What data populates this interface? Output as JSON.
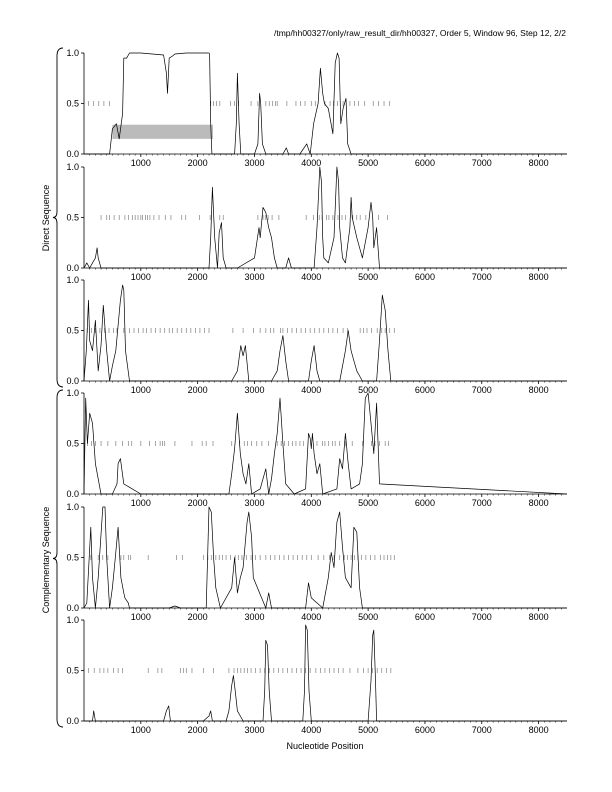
{
  "title": "/tmp/hh00327/only/raw_result_dir/hh00327, Order 5, Window 96, Step 12, 2/2",
  "xlabel": "Nucleotide Position",
  "group_labels": {
    "direct": "Direct Sequence",
    "complementary": "Complementary Sequence"
  },
  "colors": {
    "trace": "#000000",
    "highlight": "#bbbbbb",
    "ticks": "#808080"
  },
  "chart_data": [
    {
      "type": "line",
      "name": "direct-frame-1",
      "xlim": [
        0,
        8500
      ],
      "ylim": [
        0,
        1.0
      ],
      "xticks": [
        1000,
        2000,
        3000,
        4000,
        5000,
        6000,
        7000,
        8000
      ],
      "yticks": [
        0.0,
        0.5,
        1.0
      ],
      "ytick_labels": [
        "0.0",
        "0.5",
        "1.0"
      ],
      "highlight": [
        [
          500,
          2270
        ]
      ],
      "tick_marks_y": 0.5,
      "tick_marks_x": [
        80,
        170,
        260,
        350,
        450,
        2230,
        2280,
        2330,
        2390,
        2580,
        2650,
        2720,
        2940,
        3060,
        3200,
        3260,
        3320,
        3370,
        3400,
        3570,
        3730,
        3810,
        3890,
        4000,
        4070,
        4240,
        4330,
        4390,
        4460,
        4560,
        4680,
        4760,
        4830,
        4940,
        5090,
        5180,
        5280,
        5380
      ],
      "x": [
        0,
        450,
        500,
        570,
        620,
        680,
        700,
        750,
        800,
        1000,
        1400,
        1450,
        1470,
        1500,
        1560,
        1600,
        1800,
        2000,
        2200,
        2210,
        2230,
        2250,
        2500,
        2650,
        2680,
        2700,
        2730,
        2760,
        3000,
        3060,
        3090,
        3110,
        3140,
        3200,
        3500,
        3560,
        3600,
        3700,
        3800,
        3920,
        3980,
        4040,
        4120,
        4160,
        4200,
        4230,
        4300,
        4380,
        4420,
        4460,
        4490,
        4520,
        4560,
        4610,
        4640,
        4700,
        5000,
        5100,
        8500
      ],
      "y": [
        0.0,
        0.0,
        0.25,
        0.3,
        0.15,
        0.4,
        0.95,
        0.95,
        1.0,
        1.0,
        0.98,
        0.8,
        0.6,
        0.95,
        0.97,
        0.99,
        1.0,
        1.0,
        1.0,
        0.99,
        0.3,
        0.0,
        0.0,
        0.0,
        0.3,
        0.8,
        0.3,
        0.0,
        0.0,
        0.1,
        0.6,
        0.5,
        0.1,
        0.0,
        0.0,
        0.06,
        0.0,
        0.0,
        0.0,
        0.1,
        0.0,
        0.3,
        0.5,
        0.85,
        0.6,
        0.5,
        0.45,
        0.2,
        0.9,
        1.0,
        0.95,
        0.3,
        0.45,
        0.55,
        0.1,
        0.0,
        0.0,
        0.0,
        0.0
      ]
    },
    {
      "type": "line",
      "name": "direct-frame-2",
      "xlim": [
        0,
        8500
      ],
      "ylim": [
        0,
        1.0
      ],
      "xticks": [
        1000,
        2000,
        3000,
        4000,
        5000,
        6000,
        7000,
        8000
      ],
      "yticks": [
        0.0,
        0.5,
        1.0
      ],
      "ytick_labels": [
        "0.0",
        "0.5",
        "1.0"
      ],
      "highlight": [],
      "tick_marks_y": 0.5,
      "tick_marks_x": [
        300,
        400,
        450,
        530,
        620,
        720,
        780,
        850,
        900,
        950,
        1000,
        1030,
        1080,
        1120,
        1160,
        1230,
        1320,
        1430,
        1530,
        1720,
        1790,
        2030,
        2220,
        2390,
        2450,
        3060,
        3150,
        3190,
        3240,
        3310,
        3430,
        3910,
        4040,
        4140,
        4190,
        4270,
        4310,
        4380,
        4470,
        4540,
        4600,
        4730,
        4800,
        4860,
        4960,
        5180,
        5340
      ],
      "x": [
        0,
        50,
        100,
        150,
        200,
        230,
        250,
        300,
        500,
        1500,
        2200,
        2230,
        2260,
        2300,
        2350,
        2380,
        2420,
        2450,
        2500,
        2700,
        3000,
        3080,
        3100,
        3150,
        3200,
        3250,
        3300,
        3350,
        3400,
        3550,
        3600,
        3650,
        4050,
        4100,
        4150,
        4180,
        4200,
        4220,
        4300,
        4400,
        4450,
        4480,
        4500,
        4550,
        4600,
        4680,
        4700,
        4720,
        4800,
        4900,
        5000,
        5050,
        5080,
        5100,
        5150,
        5200,
        8500
      ],
      "y": [
        0.0,
        0.05,
        0.0,
        0.05,
        0.1,
        0.2,
        0.1,
        0.0,
        0.0,
        0.0,
        0.0,
        0.3,
        0.8,
        0.3,
        0.0,
        0.35,
        0.45,
        0.1,
        0.0,
        0.0,
        0.1,
        0.4,
        0.3,
        0.6,
        0.55,
        0.4,
        0.3,
        0.1,
        0.0,
        0.0,
        0.1,
        0.0,
        0.0,
        0.4,
        1.0,
        0.85,
        0.3,
        0.1,
        0.05,
        0.3,
        1.0,
        0.85,
        0.4,
        0.1,
        0.05,
        0.4,
        0.7,
        0.5,
        0.3,
        0.1,
        0.4,
        0.65,
        0.5,
        0.2,
        0.4,
        0.0,
        0.0
      ]
    },
    {
      "type": "line",
      "name": "direct-frame-3",
      "xlim": [
        0,
        8500
      ],
      "ylim": [
        0,
        1.0
      ],
      "xticks": [
        1000,
        2000,
        3000,
        4000,
        5000,
        6000,
        7000,
        8000
      ],
      "yticks": [
        0.0,
        0.5,
        1.0
      ],
      "ytick_labels": [
        "0.0",
        "0.5",
        "1.0"
      ],
      "highlight": [],
      "tick_marks_y": 0.5,
      "tick_marks_x": [
        60,
        130,
        200,
        280,
        360,
        440,
        520,
        580,
        700,
        800,
        880,
        960,
        1040,
        1100,
        1180,
        1260,
        1340,
        1420,
        1500,
        1560,
        1640,
        1720,
        1800,
        1880,
        1960,
        2040,
        2120,
        2200,
        2620,
        2800,
        2980,
        3100,
        3200,
        3280,
        3340,
        3460,
        3500,
        3580,
        3660,
        3740,
        3820,
        3900,
        3980,
        4060,
        4140,
        4220,
        4300,
        4380,
        4460,
        4560,
        4640,
        4860,
        4920,
        4980,
        5060,
        5160,
        5240,
        5300,
        5380,
        5460
      ],
      "x": [
        0,
        40,
        80,
        100,
        150,
        200,
        220,
        250,
        300,
        340,
        400,
        450,
        500,
        560,
        600,
        640,
        680,
        700,
        730,
        800,
        1000,
        2600,
        2700,
        2760,
        2800,
        2840,
        2900,
        3300,
        3400,
        3450,
        3500,
        3550,
        3600,
        3950,
        4000,
        4050,
        4100,
        4150,
        4500,
        4600,
        4650,
        4700,
        4750,
        4800,
        4900,
        5150,
        5200,
        5250,
        5300,
        5350,
        5400,
        8500
      ],
      "y": [
        0.0,
        0.3,
        0.8,
        0.4,
        0.3,
        0.6,
        0.4,
        0.1,
        0.35,
        0.75,
        0.3,
        0.0,
        0.15,
        0.3,
        0.55,
        0.8,
        0.95,
        0.9,
        0.3,
        0.0,
        0.0,
        0.0,
        0.1,
        0.35,
        0.25,
        0.35,
        0.0,
        0.0,
        0.1,
        0.3,
        0.45,
        0.2,
        0.0,
        0.0,
        0.2,
        0.35,
        0.1,
        0.0,
        0.0,
        0.3,
        0.5,
        0.3,
        0.2,
        0.1,
        0.0,
        0.0,
        0.4,
        0.85,
        0.7,
        0.3,
        0.0,
        0.0
      ]
    },
    {
      "type": "line",
      "name": "complementary-frame-1",
      "xlim": [
        0,
        8500
      ],
      "ylim": [
        0,
        1.0
      ],
      "xticks": [
        1000,
        2000,
        3000,
        4000,
        5000,
        6000,
        7000,
        8000
      ],
      "yticks": [
        0.0,
        0.5,
        1.0
      ],
      "ytick_labels": [
        "0.0",
        "0.5",
        "1.0"
      ],
      "highlight": [],
      "tick_marks_y": 0.5,
      "tick_marks_x": [
        60,
        130,
        200,
        300,
        420,
        560,
        680,
        780,
        840,
        1000,
        1150,
        1260,
        1340,
        1380,
        1420,
        1600,
        1900,
        2080,
        2150,
        2270,
        2600,
        2740,
        2820,
        2880,
        2950,
        3040,
        3130,
        3250,
        3400,
        3470,
        3530,
        3600,
        3670,
        3730,
        3800,
        3860,
        4100,
        4200,
        4240,
        4300,
        4370,
        4420,
        4500,
        4600,
        4720,
        4900,
        5060,
        5120,
        5200,
        5300,
        5360
      ],
      "x": [
        0,
        30,
        60,
        100,
        150,
        200,
        300,
        500,
        580,
        600,
        640,
        700,
        1000,
        2550,
        2600,
        2650,
        2700,
        2750,
        2800,
        2850,
        2900,
        2950,
        3100,
        3200,
        3250,
        3300,
        3350,
        3400,
        3450,
        3500,
        3550,
        3700,
        3900,
        3950,
        3980,
        4000,
        4020,
        4050,
        4100,
        4150,
        4200,
        4450,
        4500,
        4550,
        4600,
        4650,
        4700,
        4850,
        4900,
        4950,
        5000,
        5050,
        5100,
        5150,
        5200,
        8500
      ],
      "y": [
        0.0,
        0.95,
        0.5,
        0.8,
        0.7,
        0.3,
        0.0,
        0.0,
        0.1,
        0.3,
        0.35,
        0.1,
        0.0,
        0.0,
        0.2,
        0.45,
        0.8,
        0.4,
        0.2,
        0.1,
        0.3,
        0.0,
        0.05,
        0.25,
        0.0,
        0.15,
        0.4,
        0.6,
        0.95,
        0.5,
        0.1,
        0.0,
        0.05,
        0.6,
        0.55,
        0.45,
        0.6,
        0.4,
        0.2,
        0.3,
        0.0,
        0.05,
        0.35,
        0.25,
        0.6,
        0.3,
        0.05,
        0.1,
        0.3,
        0.95,
        1.0,
        0.7,
        0.4,
        0.9,
        0.1,
        0.0
      ]
    },
    {
      "type": "line",
      "name": "complementary-frame-2",
      "xlim": [
        0,
        8500
      ],
      "ylim": [
        0,
        1.0
      ],
      "xticks": [
        1000,
        2000,
        3000,
        4000,
        5000,
        6000,
        7000,
        8000
      ],
      "yticks": [
        0.0,
        0.5,
        1.0
      ],
      "ytick_labels": [
        "0.0",
        "0.5",
        "1.0"
      ],
      "highlight": [],
      "tick_marks_y": 0.5,
      "tick_marks_x": [
        120,
        250,
        330,
        420,
        650,
        700,
        780,
        820,
        1130,
        1630,
        1730,
        2100,
        2180,
        2240,
        2320,
        2380,
        2440,
        2500,
        2580,
        2660,
        2720,
        2780,
        2860,
        2940,
        3020,
        3100,
        3200,
        3280,
        3360,
        3440,
        3520,
        3600,
        3680,
        3760,
        3840,
        3920,
        4000,
        4120,
        4220,
        4320,
        4400,
        4500,
        4580,
        4640,
        4700,
        4760,
        4820,
        4880,
        4960,
        5040,
        5120,
        5220,
        5280,
        5340,
        5400,
        5460
      ],
      "x": [
        0,
        50,
        120,
        150,
        200,
        250,
        330,
        370,
        400,
        450,
        500,
        560,
        600,
        650,
        700,
        720,
        780,
        800,
        1500,
        1600,
        1700,
        2150,
        2200,
        2240,
        2280,
        2320,
        2400,
        2600,
        2650,
        2700,
        2750,
        2800,
        2870,
        2900,
        2950,
        2980,
        3200,
        3250,
        3300,
        3900,
        3950,
        4000,
        4200,
        4300,
        4350,
        4400,
        4450,
        4500,
        4550,
        4600,
        4700,
        4750,
        4800,
        4850,
        4900,
        8500
      ],
      "y": [
        0.0,
        0.05,
        0.8,
        0.3,
        0.0,
        0.3,
        1.0,
        1.0,
        0.5,
        0.0,
        0.2,
        0.55,
        0.8,
        0.3,
        0.15,
        0.1,
        0.05,
        0.0,
        0.0,
        0.02,
        0.0,
        0.0,
        1.0,
        0.95,
        0.5,
        0.2,
        0.0,
        0.2,
        0.5,
        0.15,
        0.3,
        0.4,
        0.85,
        0.95,
        0.7,
        0.3,
        0.0,
        0.15,
        0.0,
        0.0,
        0.25,
        0.1,
        0.0,
        0.3,
        0.55,
        0.4,
        0.85,
        0.95,
        0.6,
        0.3,
        0.2,
        0.8,
        0.75,
        0.2,
        0.0,
        0.0
      ]
    },
    {
      "type": "line",
      "name": "complementary-frame-3",
      "xlim": [
        0,
        8500
      ],
      "ylim": [
        0,
        1.0
      ],
      "xticks": [
        1000,
        2000,
        3000,
        4000,
        5000,
        6000,
        7000,
        8000
      ],
      "yticks": [
        0.0,
        0.5,
        1.0
      ],
      "ytick_labels": [
        "0.0",
        "0.5",
        "1.0"
      ],
      "highlight": [],
      "tick_marks_y": 0.5,
      "tick_marks_x": [
        80,
        180,
        280,
        350,
        420,
        520,
        600,
        680,
        1130,
        1300,
        1370,
        1700,
        1750,
        1800,
        1900,
        2100,
        2280,
        2550,
        2640,
        2700,
        2760,
        2820,
        2880,
        2940,
        3020,
        3100,
        3180,
        3260,
        3340,
        3420,
        3500,
        3580,
        3660,
        3740,
        3820,
        3900,
        3980,
        4080,
        4160,
        4240,
        4320,
        4400,
        4480,
        4560,
        4680,
        4820,
        4920,
        5000,
        5080,
        5160,
        5240,
        5320,
        5400
      ],
      "x": [
        0,
        150,
        170,
        200,
        1400,
        1450,
        1490,
        1520,
        2100,
        2200,
        2230,
        2260,
        2500,
        2550,
        2600,
        2630,
        2660,
        2700,
        2750,
        2800,
        3150,
        3180,
        3200,
        3230,
        3260,
        3300,
        3850,
        3880,
        3900,
        3930,
        3960,
        4000,
        4200,
        4400,
        5000,
        5050,
        5080,
        5100,
        5130,
        5150,
        8500
      ],
      "y": [
        0.0,
        0.0,
        0.1,
        0.0,
        0.0,
        0.1,
        0.15,
        0.0,
        0.0,
        0.05,
        0.1,
        0.0,
        0.0,
        0.1,
        0.35,
        0.45,
        0.3,
        0.1,
        0.05,
        0.0,
        0.0,
        0.3,
        0.8,
        0.75,
        0.3,
        0.0,
        0.0,
        0.3,
        0.95,
        0.9,
        0.3,
        0.0,
        0.0,
        0.0,
        0.0,
        0.4,
        0.85,
        0.9,
        0.4,
        0.0,
        0.0
      ]
    }
  ]
}
